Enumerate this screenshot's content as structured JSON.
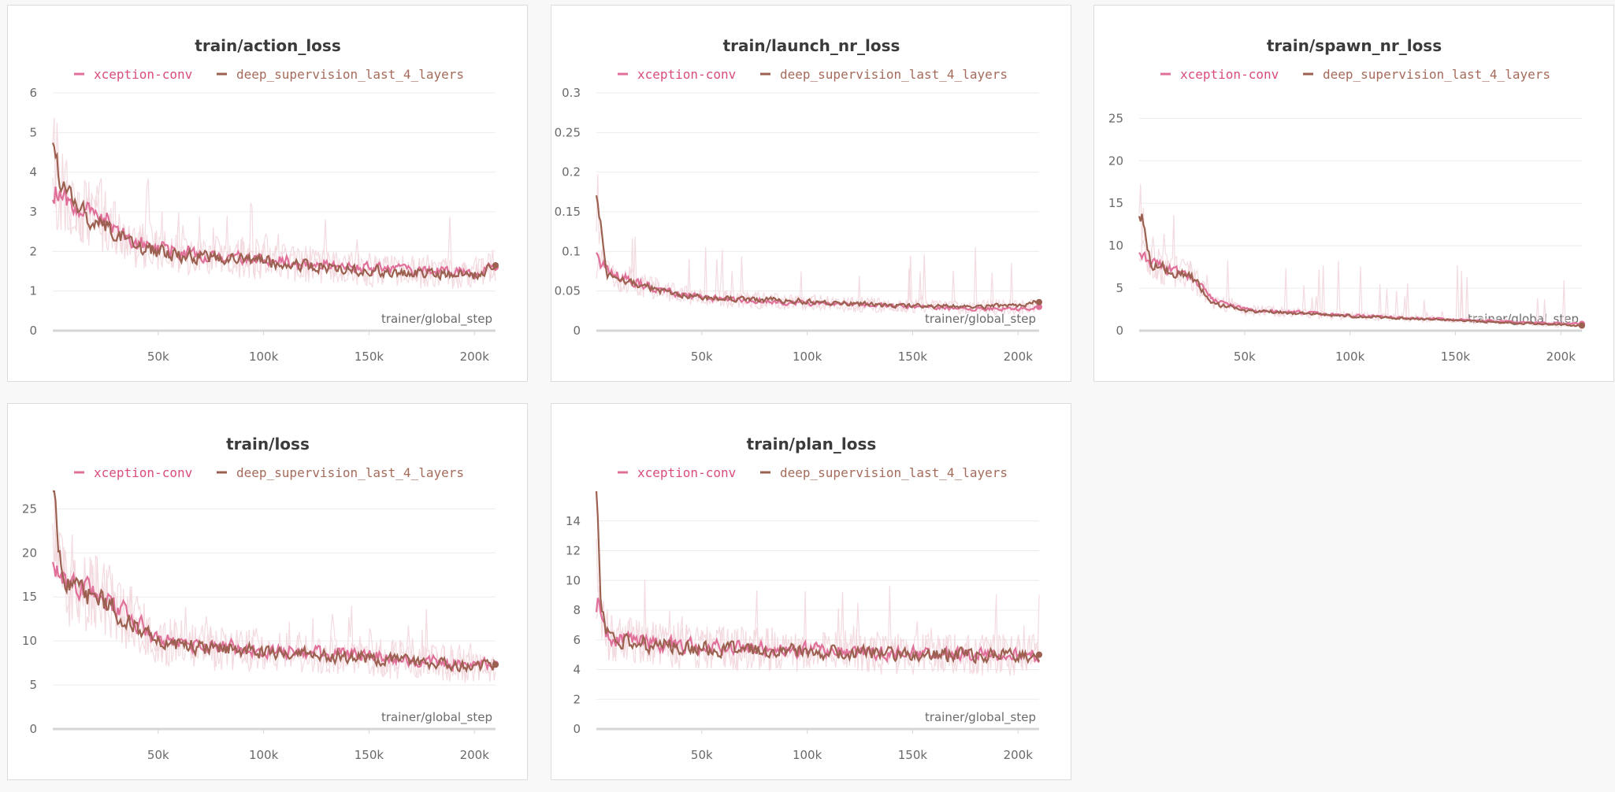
{
  "colors": {
    "series_a": "#e0709a",
    "series_b": "#9b6050",
    "noise": "#f2d7dd",
    "grid": "#ececec",
    "axis": "#d6d6d6",
    "legend_a_text": "#d94d7a",
    "legend_b_text": "#a46b5b"
  },
  "legend": {
    "series_a": "xception-conv",
    "series_b": "deep_supervision_last_4_layers"
  },
  "chart_data": [
    {
      "type": "line",
      "title": "train/action_loss",
      "xlabel": "trainer/global_step",
      "xlim": [
        0,
        210000
      ],
      "ylim": [
        0,
        6
      ],
      "x_ticks": [
        50000,
        100000,
        150000,
        200000
      ],
      "x_tick_labels": [
        "50k",
        "100k",
        "150k",
        "200k"
      ],
      "y_ticks": [
        0,
        1,
        2,
        3,
        4,
        5,
        6
      ],
      "y_tick_labels": [
        "0",
        "1",
        "2",
        "3",
        "4",
        "5",
        "6"
      ],
      "series": [
        {
          "name": "xception-conv",
          "x": [
            0,
            10000,
            25000,
            40000,
            60000,
            80000,
            100000,
            120000,
            140000,
            160000,
            180000,
            200000,
            210000
          ],
          "values": [
            3.6,
            3.1,
            2.8,
            2.2,
            2.0,
            1.9,
            1.8,
            1.7,
            1.6,
            1.55,
            1.5,
            1.45,
            1.6
          ]
        },
        {
          "name": "deep_supervision_last_4_layers",
          "x": [
            0,
            10000,
            25000,
            40000,
            60000,
            80000,
            100000,
            120000,
            140000,
            160000,
            180000,
            200000,
            210000
          ],
          "values": [
            4.4,
            3.0,
            2.7,
            2.1,
            1.9,
            1.85,
            1.75,
            1.65,
            1.55,
            1.5,
            1.45,
            1.4,
            1.65
          ]
        }
      ]
    },
    {
      "type": "line",
      "title": "train/launch_nr_loss",
      "xlabel": "trainer/global_step",
      "xlim": [
        0,
        210000
      ],
      "ylim": [
        0,
        0.3
      ],
      "x_ticks": [
        50000,
        100000,
        150000,
        200000
      ],
      "x_tick_labels": [
        "50k",
        "100k",
        "150k",
        "200k"
      ],
      "y_ticks": [
        0,
        0.05,
        0.1,
        0.15,
        0.2,
        0.25,
        0.3
      ],
      "y_tick_labels": [
        "0",
        "0.05",
        "0.1",
        "0.15",
        "0.2",
        "0.25",
        "0.3"
      ],
      "series": [
        {
          "name": "xception-conv",
          "x": [
            0,
            5000,
            20000,
            40000,
            60000,
            80000,
            100000,
            120000,
            140000,
            160000,
            180000,
            200000,
            210000
          ],
          "values": [
            0.09,
            0.075,
            0.06,
            0.045,
            0.04,
            0.037,
            0.035,
            0.033,
            0.031,
            0.03,
            0.028,
            0.027,
            0.03
          ]
        },
        {
          "name": "deep_supervision_last_4_layers",
          "x": [
            0,
            5000,
            20000,
            40000,
            60000,
            80000,
            100000,
            120000,
            140000,
            160000,
            180000,
            200000,
            210000
          ],
          "values": [
            0.17,
            0.07,
            0.058,
            0.044,
            0.041,
            0.039,
            0.037,
            0.034,
            0.032,
            0.031,
            0.03,
            0.033,
            0.036
          ]
        }
      ]
    },
    {
      "type": "line",
      "title": "train/spawn_nr_loss",
      "xlabel": "trainer/global_step",
      "xlim": [
        0,
        210000
      ],
      "ylim": [
        0,
        28
      ],
      "x_ticks": [
        50000,
        100000,
        150000,
        200000
      ],
      "x_tick_labels": [
        "50k",
        "100k",
        "150k",
        "200k"
      ],
      "y_ticks": [
        0,
        5,
        10,
        15,
        20,
        25
      ],
      "y_tick_labels": [
        "0",
        "5",
        "10",
        "15",
        "20",
        "25"
      ],
      "series": [
        {
          "name": "xception-conv",
          "x": [
            0,
            5000,
            15000,
            25000,
            35000,
            50000,
            70000,
            100000,
            130000,
            160000,
            190000,
            210000
          ],
          "values": [
            9,
            8,
            7,
            6.5,
            3.5,
            2.5,
            2.2,
            1.8,
            1.5,
            1.2,
            0.9,
            0.8
          ]
        },
        {
          "name": "deep_supervision_last_4_layers",
          "x": [
            0,
            5000,
            15000,
            25000,
            35000,
            50000,
            70000,
            100000,
            130000,
            160000,
            190000,
            210000
          ],
          "values": [
            14.5,
            8,
            7,
            6.2,
            3.2,
            2.4,
            2.1,
            1.7,
            1.4,
            1.1,
            0.8,
            0.6
          ]
        }
      ]
    },
    {
      "type": "line",
      "title": "train/loss",
      "xlabel": "trainer/global_step",
      "xlim": [
        0,
        210000
      ],
      "ylim": [
        0,
        27
      ],
      "x_ticks": [
        50000,
        100000,
        150000,
        200000
      ],
      "x_tick_labels": [
        "50k",
        "100k",
        "150k",
        "200k"
      ],
      "y_ticks": [
        0,
        5,
        10,
        15,
        20,
        25
      ],
      "y_tick_labels": [
        "0",
        "5",
        "10",
        "15",
        "20",
        "25"
      ],
      "series": [
        {
          "name": "xception-conv",
          "x": [
            0,
            5000,
            20000,
            35000,
            50000,
            70000,
            90000,
            110000,
            130000,
            150000,
            170000,
            190000,
            210000
          ],
          "values": [
            20,
            16.5,
            15.5,
            13,
            10,
            9.5,
            9.2,
            8.8,
            8.5,
            8.3,
            7.8,
            7.5,
            7.4
          ]
        },
        {
          "name": "deep_supervision_last_4_layers",
          "x": [
            0,
            5000,
            20000,
            35000,
            50000,
            70000,
            90000,
            110000,
            130000,
            150000,
            170000,
            190000,
            210000
          ],
          "values": [
            26.5,
            16,
            15,
            12.5,
            9.8,
            9.3,
            9.0,
            8.6,
            8.3,
            8.1,
            7.6,
            7.3,
            7.3
          ]
        }
      ]
    },
    {
      "type": "line",
      "title": "train/plan_loss",
      "xlabel": "trainer/global_step",
      "xlim": [
        0,
        210000
      ],
      "ylim": [
        0,
        16
      ],
      "x_ticks": [
        50000,
        100000,
        150000,
        200000
      ],
      "x_tick_labels": [
        "50k",
        "100k",
        "150k",
        "200k"
      ],
      "y_ticks": [
        0,
        2,
        4,
        6,
        8,
        10,
        12,
        14
      ],
      "y_tick_labels": [
        "0",
        "2",
        "4",
        "6",
        "8",
        "10",
        "12",
        "14"
      ],
      "series": [
        {
          "name": "xception-conv",
          "x": [
            0,
            2000,
            5000,
            15000,
            40000,
            80000,
            120000,
            160000,
            200000,
            210000
          ],
          "values": [
            9,
            7.5,
            6.3,
            5.9,
            5.6,
            5.4,
            5.2,
            5.05,
            5.0,
            5.0
          ]
        },
        {
          "name": "deep_supervision_last_4_layers",
          "x": [
            0,
            2000,
            5000,
            15000,
            40000,
            80000,
            120000,
            160000,
            200000,
            210000
          ],
          "values": [
            15.5,
            8,
            6.2,
            5.8,
            5.5,
            5.3,
            5.15,
            5.0,
            4.95,
            5.0
          ]
        }
      ]
    }
  ]
}
